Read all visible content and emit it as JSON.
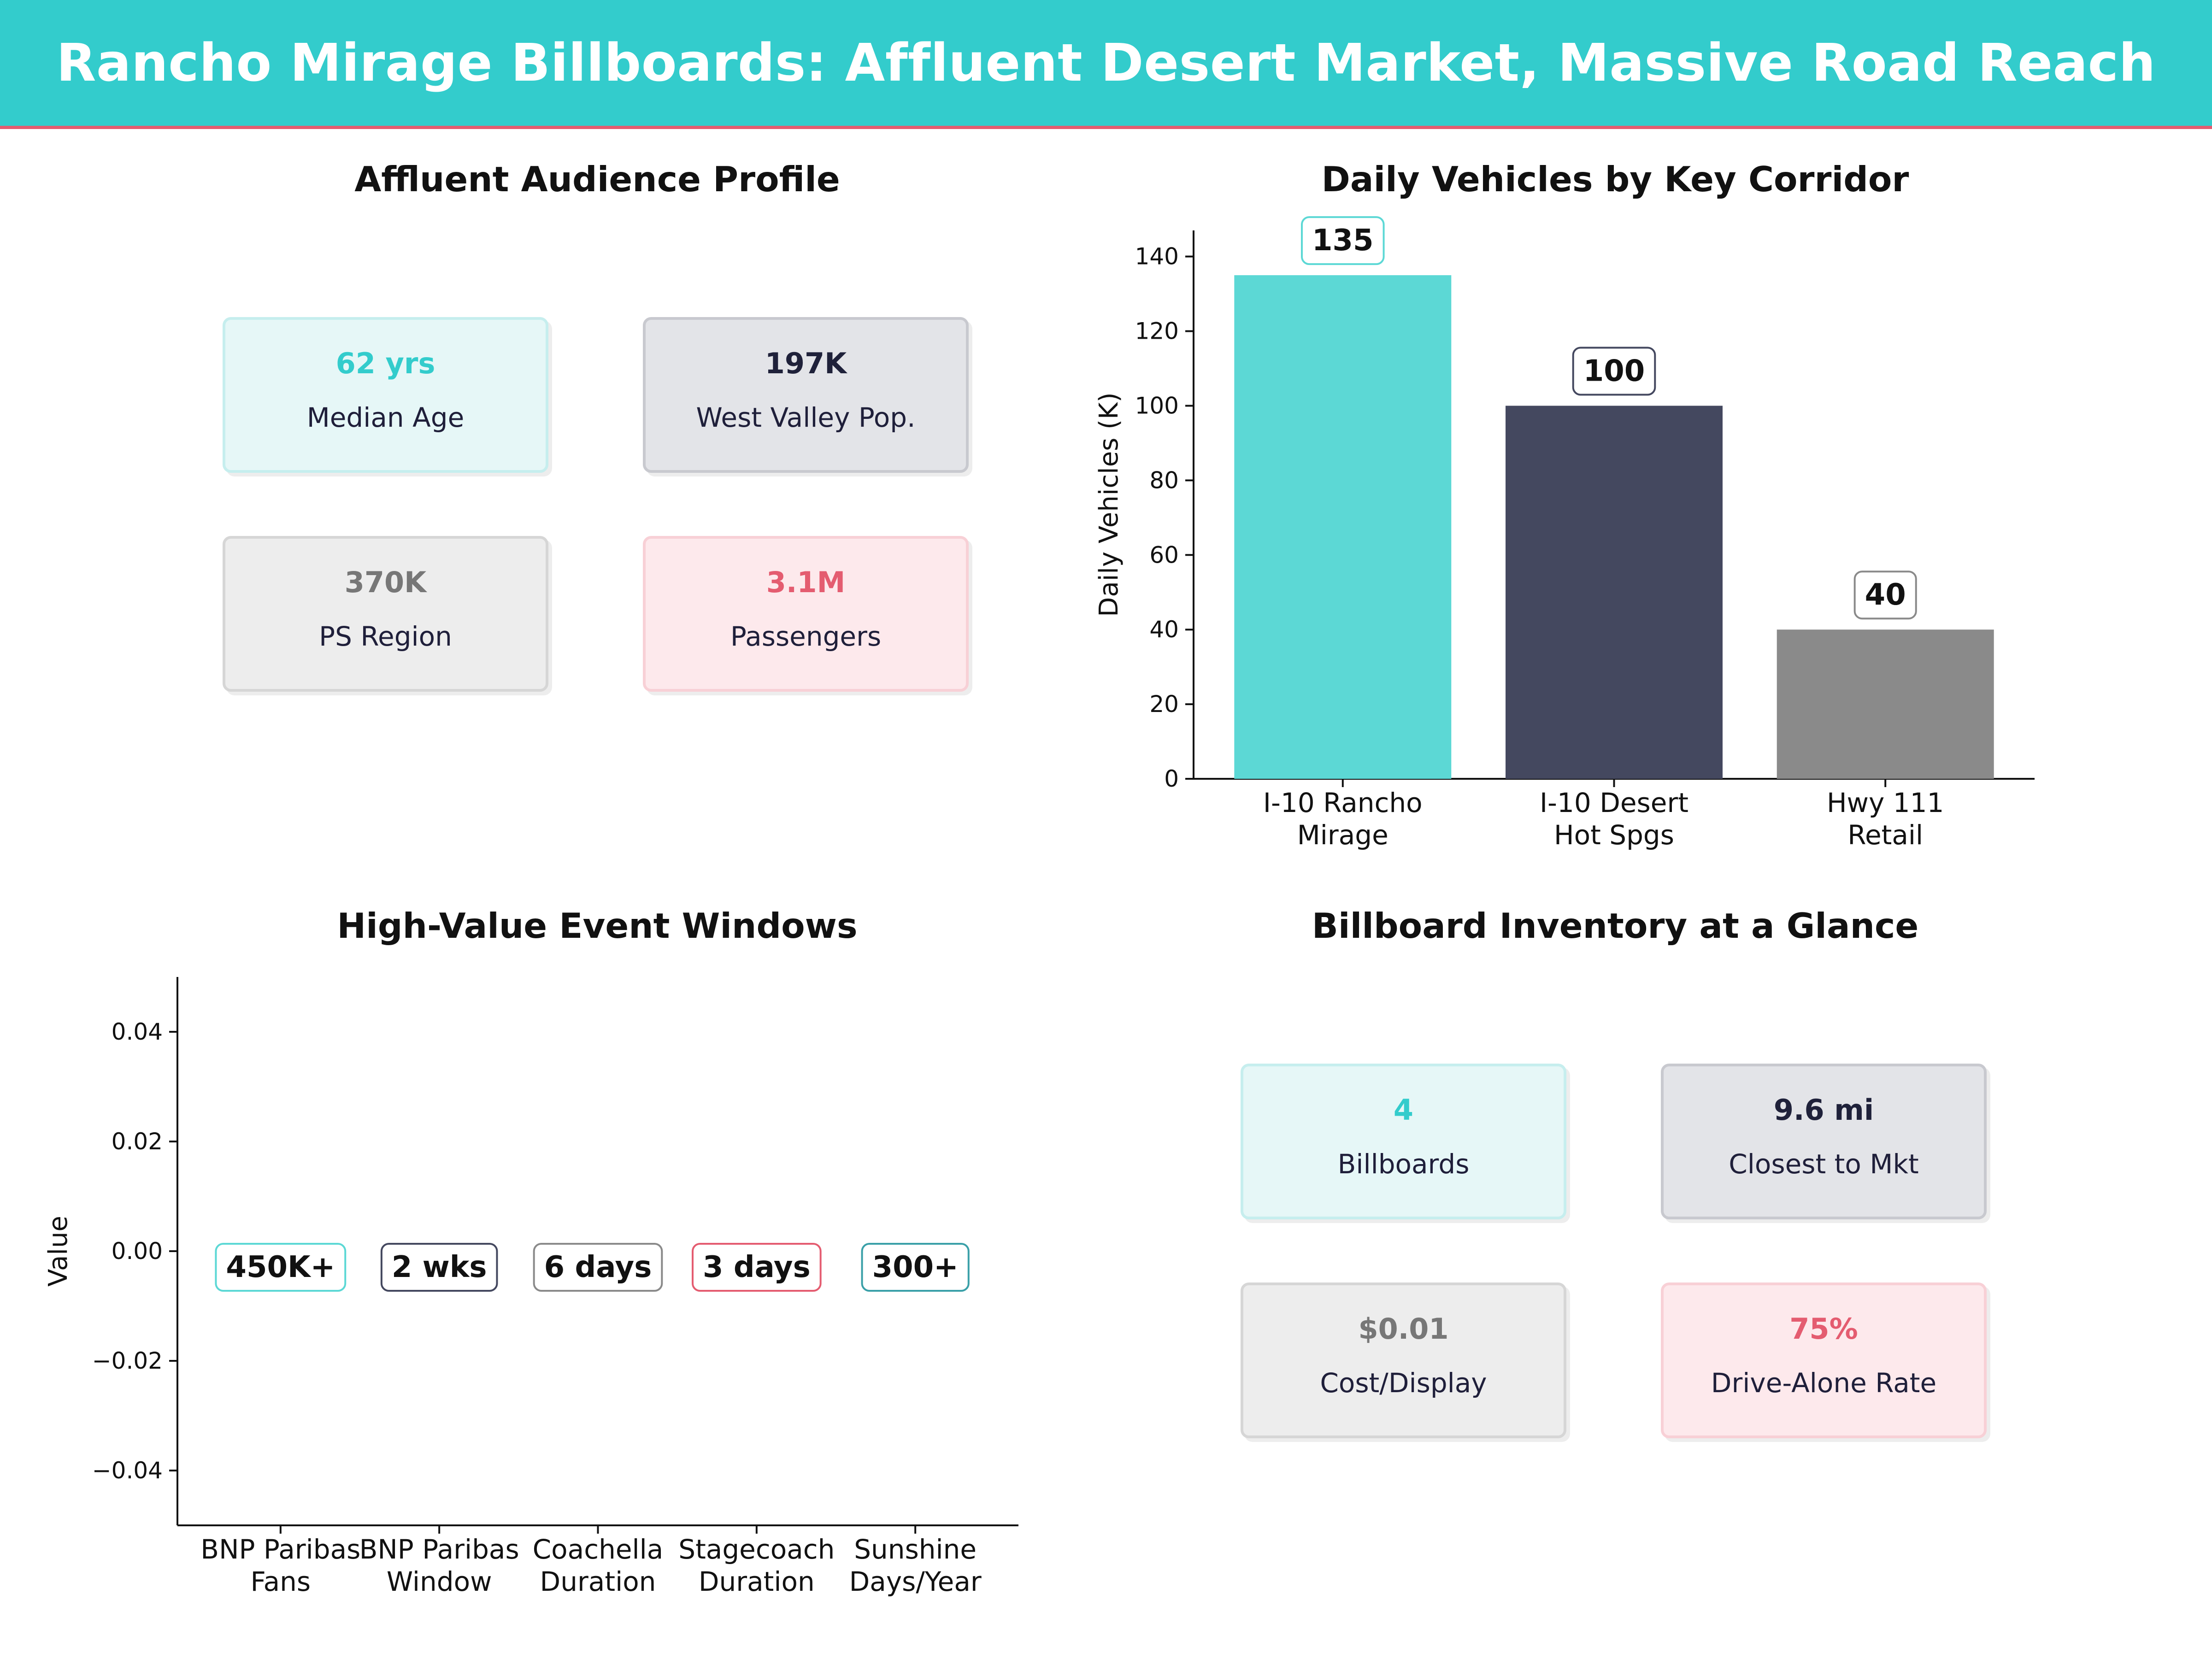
{
  "header": {
    "title": "Rancho Mirage Billboards: Affluent Desert Market, Massive Road Reach"
  },
  "colors": {
    "teal": "#33cccc",
    "bar_teal": "#5cd8d5",
    "navy": "#44485f",
    "gray": "#8a8a8a",
    "pink": "#e45c70"
  },
  "audience": {
    "title": "Affluent Audience Profile",
    "cards": [
      {
        "value": "62 yrs",
        "label": "Median Age"
      },
      {
        "value": "197K",
        "label": "West Valley Pop."
      },
      {
        "value": "370K",
        "label": "PS Region"
      },
      {
        "value": "3.1M",
        "label": "Passengers"
      }
    ]
  },
  "inventory": {
    "title": "Billboard Inventory at a Glance",
    "cards": [
      {
        "value": "4",
        "label": "Billboards"
      },
      {
        "value": "9.6 mi",
        "label": "Closest to Mkt"
      },
      {
        "value": "$0.01",
        "label": "Cost/Display"
      },
      {
        "value": "75%",
        "label": "Drive-Alone Rate"
      }
    ]
  },
  "chart_data": [
    {
      "type": "bar",
      "title": "Daily Vehicles by Key Corridor",
      "categories": [
        "I-10 Rancho\nMirage",
        "I-10 Desert\nHot Spgs",
        "Hwy 111\nRetail"
      ],
      "values": [
        135,
        100,
        40
      ],
      "value_labels": [
        "135",
        "100",
        "40"
      ],
      "colors": [
        "#5cd8d5",
        "#44485f",
        "#8a8a8a"
      ],
      "label_border_colors": [
        "#5cd8d5",
        "#44485f",
        "#8a8a8a"
      ],
      "xlabel": "",
      "ylabel": "Daily Vehicles (K)",
      "ylim": [
        0,
        147
      ],
      "yticks": [
        0,
        20,
        40,
        60,
        80,
        100,
        120,
        140
      ],
      "grid": false
    },
    {
      "type": "scatter",
      "title": "High-Value Event Windows",
      "categories": [
        "BNP Paribas\nFans",
        "BNP Paribas\nWindow",
        "Coachella\nDuration",
        "Stagecoach\nDuration",
        "Sunshine\nDays/Year"
      ],
      "values": [
        0,
        0,
        0,
        0,
        0
      ],
      "value_labels": [
        "450K+",
        "2 wks",
        "6 days",
        "3 days",
        "300+"
      ],
      "label_border_colors": [
        "#5cd8d5",
        "#44485f",
        "#8a8a8a",
        "#e45c70",
        "#3aa0a8"
      ],
      "xlabel": "",
      "ylabel": "Value",
      "ylim": [
        -0.05,
        0.05
      ],
      "yticks": [
        -0.04,
        -0.02,
        0.0,
        0.02,
        0.04
      ],
      "ytick_labels": [
        "−0.04",
        "−0.02",
        "0.00",
        "0.02",
        "0.04"
      ],
      "grid": false
    }
  ]
}
